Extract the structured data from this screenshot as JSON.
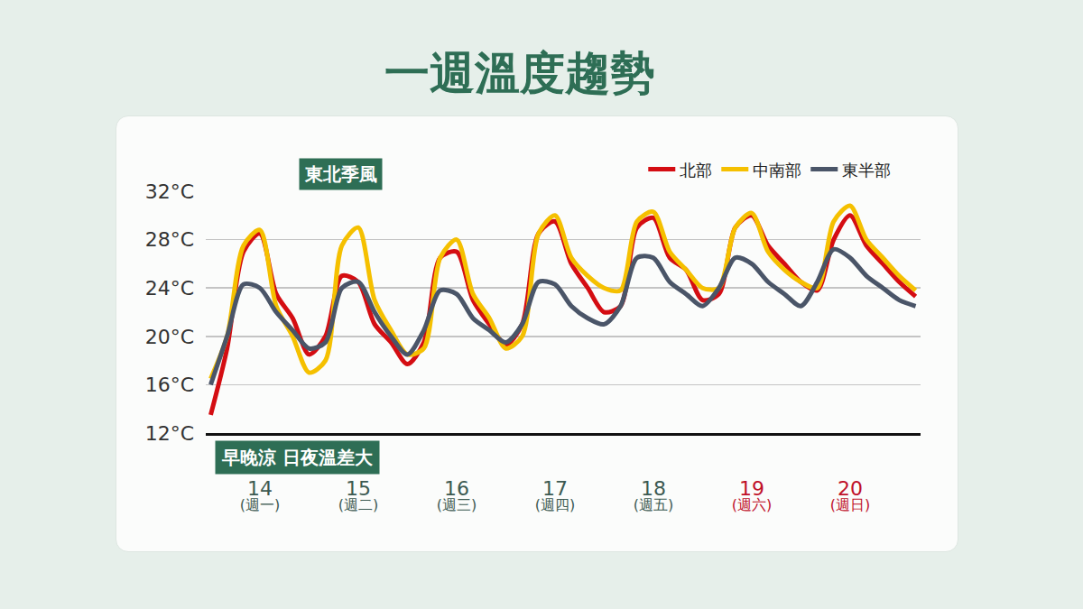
{
  "chart_data": {
    "type": "line",
    "title": "一週溫度趨勢",
    "annotations": [
      "東北季風",
      "早晚涼 日夜溫差大"
    ],
    "categories": [
      null,
      null,
      null,
      "14\n(週一)",
      null,
      null,
      null,
      null,
      null,
      "15\n(週二)",
      null,
      null,
      null,
      null,
      null,
      "16\n(週三)",
      null,
      null,
      null,
      null,
      null,
      "17\n(週四)",
      null,
      null,
      null,
      null,
      null,
      "18\n(週五)",
      null,
      null,
      null,
      null,
      null,
      "19\n(週六)",
      null,
      null,
      null,
      null,
      null,
      "20\n(週日)",
      null,
      null,
      null,
      null
    ],
    "series": [
      {
        "name": "北部",
        "color": "#d40d12",
        "values": [
          13.5,
          19,
          27,
          28.5,
          23.5,
          21.5,
          18.5,
          20,
          25,
          24.5,
          21,
          19.5,
          17.7,
          19.5,
          26.5,
          27,
          23,
          21,
          19.3,
          21,
          28.5,
          29.5,
          26,
          24,
          22,
          22.5,
          29,
          29.8,
          26.5,
          25.5,
          23,
          23.5,
          29,
          30,
          27.5,
          26,
          24.5,
          23.8,
          28,
          30,
          27.5,
          26,
          24.5,
          23.3
        ]
      },
      {
        "name": "中南部",
        "color": "#f5c000",
        "values": [
          16.5,
          20,
          27.5,
          28.8,
          22.5,
          20,
          17,
          18,
          27.5,
          29,
          23,
          20.5,
          18.5,
          19,
          26.5,
          28,
          23.5,
          21.5,
          19,
          20,
          28.5,
          30,
          26.5,
          25,
          24,
          23.8,
          29.5,
          30.3,
          27,
          25.5,
          24,
          24,
          29,
          30.2,
          27,
          25.5,
          24.5,
          24,
          29.5,
          30.8,
          28,
          26.5,
          25,
          23.8
        ]
      },
      {
        "name": "東半部",
        "color": "#4a5568",
        "values": [
          16,
          20,
          24.3,
          24,
          22,
          20.5,
          19,
          19.5,
          24,
          24.5,
          22,
          20,
          18.5,
          20.5,
          23.8,
          23.5,
          21.5,
          20.5,
          19.5,
          21,
          24.5,
          24.3,
          22.5,
          21.5,
          21,
          22.5,
          26.5,
          26.5,
          24.5,
          23.5,
          22.5,
          24,
          26.5,
          26,
          24.5,
          23.5,
          22.5,
          24.5,
          27.2,
          26.5,
          25,
          24,
          23,
          22.5
        ]
      }
    ],
    "ylim": [
      12,
      32
    ],
    "yticks": [
      {
        "value": 12,
        "label": "12°C"
      },
      {
        "value": 16,
        "label": "16°C"
      },
      {
        "value": 20,
        "label": "20°C"
      },
      {
        "value": 24,
        "label": "24°C"
      },
      {
        "value": 28,
        "label": "28°C"
      },
      {
        "value": 32,
        "label": "32°C"
      }
    ],
    "grid": true,
    "legend": "top right"
  }
}
